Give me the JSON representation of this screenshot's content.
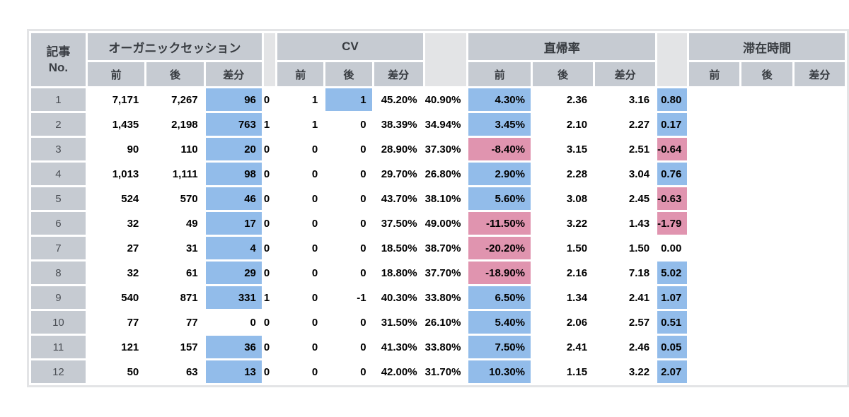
{
  "colors": {
    "page_background": "#ffffff",
    "header_cell_bg": "#c6cbd2",
    "positive_diff_bg": "#92bcea",
    "negative_diff_bg": "#e094af",
    "neutral_cell_bg": "#ffffff",
    "frame_and_separator_bg": "#e3e4e6",
    "data_text": "#000000",
    "header_text": "#383c41"
  },
  "chart_data": {
    "type": "table",
    "corner_header": "記事\nNo.",
    "column_groups": [
      {
        "key": "organic",
        "label": "オーガニックセッション"
      },
      {
        "key": "cv",
        "label": "CV"
      },
      {
        "key": "bounce",
        "label": "直帰率"
      },
      {
        "key": "time",
        "label": "滞在時間"
      }
    ],
    "sub_headers": [
      "前",
      "後",
      "差分"
    ],
    "rows": [
      {
        "no": "1",
        "organic": {
          "before": "7,171",
          "after": "7,267",
          "diff": "96",
          "diff_state": "positive"
        },
        "cv": {
          "before": "0",
          "after": "1",
          "diff": "1",
          "diff_state": "positive"
        },
        "bounce": {
          "before": "45.20%",
          "after": "40.90%",
          "diff": "4.30%",
          "diff_state": "positive"
        },
        "time": {
          "before": "2.36",
          "after": "3.16",
          "diff": "0.80",
          "diff_state": "positive"
        }
      },
      {
        "no": "2",
        "organic": {
          "before": "1,435",
          "after": "2,198",
          "diff": "763",
          "diff_state": "positive"
        },
        "cv": {
          "before": "1",
          "after": "1",
          "diff": "0",
          "diff_state": "neutral"
        },
        "bounce": {
          "before": "38.39%",
          "after": "34.94%",
          "diff": "3.45%",
          "diff_state": "positive"
        },
        "time": {
          "before": "2.10",
          "after": "2.27",
          "diff": "0.17",
          "diff_state": "positive"
        }
      },
      {
        "no": "3",
        "organic": {
          "before": "90",
          "after": "110",
          "diff": "20",
          "diff_state": "positive"
        },
        "cv": {
          "before": "0",
          "after": "0",
          "diff": "0",
          "diff_state": "neutral"
        },
        "bounce": {
          "before": "28.90%",
          "after": "37.30%",
          "diff": "-8.40%",
          "diff_state": "negative"
        },
        "time": {
          "before": "3.15",
          "after": "2.51",
          "diff": "-0.64",
          "diff_state": "negative"
        }
      },
      {
        "no": "4",
        "organic": {
          "before": "1,013",
          "after": "1,111",
          "diff": "98",
          "diff_state": "positive"
        },
        "cv": {
          "before": "0",
          "after": "0",
          "diff": "0",
          "diff_state": "neutral"
        },
        "bounce": {
          "before": "29.70%",
          "after": "26.80%",
          "diff": "2.90%",
          "diff_state": "positive"
        },
        "time": {
          "before": "2.28",
          "after": "3.04",
          "diff": "0.76",
          "diff_state": "positive"
        }
      },
      {
        "no": "5",
        "organic": {
          "before": "524",
          "after": "570",
          "diff": "46",
          "diff_state": "positive"
        },
        "cv": {
          "before": "0",
          "after": "0",
          "diff": "0",
          "diff_state": "neutral"
        },
        "bounce": {
          "before": "43.70%",
          "after": "38.10%",
          "diff": "5.60%",
          "diff_state": "positive"
        },
        "time": {
          "before": "3.08",
          "after": "2.45",
          "diff": "-0.63",
          "diff_state": "negative"
        }
      },
      {
        "no": "6",
        "organic": {
          "before": "32",
          "after": "49",
          "diff": "17",
          "diff_state": "positive"
        },
        "cv": {
          "before": "0",
          "after": "0",
          "diff": "0",
          "diff_state": "neutral"
        },
        "bounce": {
          "before": "37.50%",
          "after": "49.00%",
          "diff": "-11.50%",
          "diff_state": "negative"
        },
        "time": {
          "before": "3.22",
          "after": "1.43",
          "diff": "-1.79",
          "diff_state": "negative"
        }
      },
      {
        "no": "7",
        "organic": {
          "before": "27",
          "after": "31",
          "diff": "4",
          "diff_state": "positive"
        },
        "cv": {
          "before": "0",
          "after": "0",
          "diff": "0",
          "diff_state": "neutral"
        },
        "bounce": {
          "before": "18.50%",
          "after": "38.70%",
          "diff": "-20.20%",
          "diff_state": "negative"
        },
        "time": {
          "before": "1.50",
          "after": "1.50",
          "diff": "0.00",
          "diff_state": "neutral"
        }
      },
      {
        "no": "8",
        "organic": {
          "before": "32",
          "after": "61",
          "diff": "29",
          "diff_state": "positive"
        },
        "cv": {
          "before": "0",
          "after": "0",
          "diff": "0",
          "diff_state": "neutral"
        },
        "bounce": {
          "before": "18.80%",
          "after": "37.70%",
          "diff": "-18.90%",
          "diff_state": "negative"
        },
        "time": {
          "before": "2.16",
          "after": "7.18",
          "diff": "5.02",
          "diff_state": "positive"
        }
      },
      {
        "no": "9",
        "organic": {
          "before": "540",
          "after": "871",
          "diff": "331",
          "diff_state": "positive"
        },
        "cv": {
          "before": "1",
          "after": "0",
          "diff": "-1",
          "diff_state": "neutral"
        },
        "bounce": {
          "before": "40.30%",
          "after": "33.80%",
          "diff": "6.50%",
          "diff_state": "positive"
        },
        "time": {
          "before": "1.34",
          "after": "2.41",
          "diff": "1.07",
          "diff_state": "positive"
        }
      },
      {
        "no": "10",
        "organic": {
          "before": "77",
          "after": "77",
          "diff": "0",
          "diff_state": "neutral"
        },
        "cv": {
          "before": "0",
          "after": "0",
          "diff": "0",
          "diff_state": "neutral"
        },
        "bounce": {
          "before": "31.50%",
          "after": "26.10%",
          "diff": "5.40%",
          "diff_state": "positive"
        },
        "time": {
          "before": "2.06",
          "after": "2.57",
          "diff": "0.51",
          "diff_state": "positive"
        }
      },
      {
        "no": "11",
        "organic": {
          "before": "121",
          "after": "157",
          "diff": "36",
          "diff_state": "positive"
        },
        "cv": {
          "before": "0",
          "after": "0",
          "diff": "0",
          "diff_state": "neutral"
        },
        "bounce": {
          "before": "41.30%",
          "after": "33.80%",
          "diff": "7.50%",
          "diff_state": "positive"
        },
        "time": {
          "before": "2.41",
          "after": "2.46",
          "diff": "0.05",
          "diff_state": "positive"
        }
      },
      {
        "no": "12",
        "organic": {
          "before": "50",
          "after": "63",
          "diff": "13",
          "diff_state": "positive"
        },
        "cv": {
          "before": "0",
          "after": "0",
          "diff": "0",
          "diff_state": "neutral"
        },
        "bounce": {
          "before": "42.00%",
          "after": "31.70%",
          "diff": "10.30%",
          "diff_state": "positive"
        },
        "time": {
          "before": "1.15",
          "after": "3.22",
          "diff": "2.07",
          "diff_state": "positive"
        }
      }
    ]
  }
}
